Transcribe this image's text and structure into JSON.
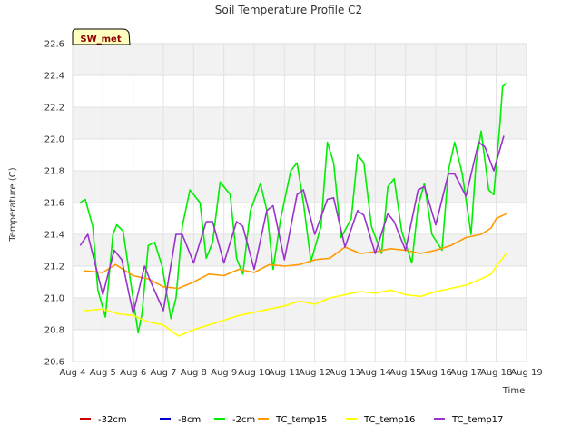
{
  "chart_data": {
    "type": "line",
    "title": "Soil Temperature Profile C2",
    "xlabel": "Time",
    "ylabel": "Temperature (C)",
    "badge": "SW_met",
    "xlim": [
      "Aug 4",
      "Aug 19"
    ],
    "ylim": [
      20.6,
      22.6
    ],
    "x_ticks": [
      "Aug 4",
      "Aug 5",
      "Aug 6",
      "Aug 7",
      "Aug 8",
      "Aug 9",
      "Aug 10",
      "Aug 11",
      "Aug 12",
      "Aug 13",
      "Aug 14",
      "Aug 15",
      "Aug 16",
      "Aug 17",
      "Aug 18",
      "Aug 19"
    ],
    "y_ticks": [
      "20.6",
      "20.8",
      "21.0",
      "21.2",
      "21.4",
      "21.6",
      "21.8",
      "22.0",
      "22.2",
      "22.4",
      "22.6"
    ],
    "grid": true,
    "legend_position": "bottom",
    "series": [
      {
        "name": "-32cm",
        "color": "#cc0000",
        "x": [],
        "y": []
      },
      {
        "name": "-8cm",
        "color": "#0000cc",
        "x": [],
        "y": []
      },
      {
        "name": "-2cm",
        "color": "#00ee00",
        "x": [
          "Aug 4 06:00",
          "Aug 4 10:00",
          "Aug 4 16:00",
          "Aug 4 20:00",
          "Aug 5 02:00",
          "Aug 5 08:00",
          "Aug 5 11:00",
          "Aug 5 16:00",
          "Aug 5 22:00",
          "Aug 6 04:00",
          "Aug 6 07:00",
          "Aug 6 12:00",
          "Aug 6 17:00",
          "Aug 6 23:00",
          "Aug 7 06:00",
          "Aug 7 10:00",
          "Aug 7 15:00",
          "Aug 7 21:00",
          "Aug 8 05:00",
          "Aug 8 10:00",
          "Aug 8 15:00",
          "Aug 8 21:00",
          "Aug 9 05:00",
          "Aug 9 10:00",
          "Aug 9 15:00",
          "Aug 9 21:00",
          "Aug 10 05:00",
          "Aug 10 10:00",
          "Aug 10 15:00",
          "Aug 10 21:00",
          "Aug 11 05:00",
          "Aug 11 10:00",
          "Aug 11 15:00",
          "Aug 11 21:00",
          "Aug 12 05:00",
          "Aug 12 10:00",
          "Aug 12 15:00",
          "Aug 12 21:00",
          "Aug 13 05:00",
          "Aug 13 10:00",
          "Aug 13 15:00",
          "Aug 13 21:00",
          "Aug 14 05:00",
          "Aug 14 10:00",
          "Aug 14 15:00",
          "Aug 14 21:00",
          "Aug 15 05:00",
          "Aug 15 10:00",
          "Aug 15 15:00",
          "Aug 15 21:00",
          "Aug 16 05:00",
          "Aug 16 10:00",
          "Aug 16 15:00",
          "Aug 16 21:00",
          "Aug 17 04:00",
          "Aug 17 08:00",
          "Aug 17 12:00",
          "Aug 17 18:00",
          "Aug 17 22:00",
          "Aug 18 03:00",
          "Aug 18 05:00",
          "Aug 18 08:00"
        ],
        "y": [
          21.6,
          21.62,
          21.45,
          21.05,
          20.88,
          21.4,
          21.46,
          21.42,
          21.1,
          20.78,
          20.9,
          21.33,
          21.35,
          21.2,
          20.87,
          21.0,
          21.45,
          21.68,
          21.6,
          21.25,
          21.35,
          21.73,
          21.65,
          21.25,
          21.15,
          21.55,
          21.72,
          21.55,
          21.18,
          21.5,
          21.8,
          21.85,
          21.6,
          21.23,
          21.45,
          21.98,
          21.85,
          21.38,
          21.5,
          21.9,
          21.85,
          21.45,
          21.28,
          21.7,
          21.75,
          21.42,
          21.22,
          21.58,
          21.72,
          21.4,
          21.3,
          21.8,
          21.98,
          21.78,
          21.4,
          21.85,
          22.05,
          21.68,
          21.65,
          22.1,
          22.33,
          22.35
        ]
      },
      {
        "name": "TC_temp15",
        "color": "#ff9900",
        "x": [
          "Aug 4 09:00",
          "Aug 5 00:00",
          "Aug 5 10:00",
          "Aug 6 00:00",
          "Aug 6 12:00",
          "Aug 7 00:00",
          "Aug 7 12:00",
          "Aug 8 00:00",
          "Aug 8 12:00",
          "Aug 9 00:00",
          "Aug 9 12:00",
          "Aug 10 00:00",
          "Aug 10 12:00",
          "Aug 11 00:00",
          "Aug 11 12:00",
          "Aug 12 00:00",
          "Aug 12 12:00",
          "Aug 13 00:00",
          "Aug 13 12:00",
          "Aug 14 00:00",
          "Aug 14 12:00",
          "Aug 15 00:00",
          "Aug 15 12:00",
          "Aug 16 00:00",
          "Aug 16 12:00",
          "Aug 17 00:00",
          "Aug 17 12:00",
          "Aug 17 20:00",
          "Aug 18 00:00",
          "Aug 18 08:00"
        ],
        "y": [
          21.17,
          21.16,
          21.21,
          21.14,
          21.12,
          21.07,
          21.06,
          21.1,
          21.15,
          21.14,
          21.18,
          21.16,
          21.21,
          21.2,
          21.21,
          21.24,
          21.25,
          21.32,
          21.28,
          21.29,
          21.31,
          21.3,
          21.28,
          21.3,
          21.33,
          21.38,
          21.4,
          21.44,
          21.5,
          21.53
        ]
      },
      {
        "name": "TC_temp16",
        "color": "#ffff00",
        "x": [
          "Aug 4 09:00",
          "Aug 5 00:00",
          "Aug 5 12:00",
          "Aug 6 00:00",
          "Aug 6 12:00",
          "Aug 7 00:00",
          "Aug 7 12:00",
          "Aug 8 00:00",
          "Aug 8 12:00",
          "Aug 9 00:00",
          "Aug 9 12:00",
          "Aug 10 00:00",
          "Aug 10 12:00",
          "Aug 11 00:00",
          "Aug 11 12:00",
          "Aug 12 00:00",
          "Aug 12 12:00",
          "Aug 13 00:00",
          "Aug 13 12:00",
          "Aug 14 00:00",
          "Aug 14 12:00",
          "Aug 15 00:00",
          "Aug 15 12:00",
          "Aug 16 00:00",
          "Aug 16 12:00",
          "Aug 17 00:00",
          "Aug 17 12:00",
          "Aug 17 20:00",
          "Aug 18 00:00",
          "Aug 18 08:00"
        ],
        "y": [
          20.92,
          20.93,
          20.9,
          20.89,
          20.85,
          20.83,
          20.76,
          20.8,
          20.83,
          20.86,
          20.89,
          20.91,
          20.93,
          20.95,
          20.98,
          20.96,
          21.0,
          21.02,
          21.04,
          21.03,
          21.05,
          21.02,
          21.01,
          21.04,
          21.06,
          21.08,
          21.12,
          21.15,
          21.2,
          21.28
        ]
      },
      {
        "name": "TC_temp17",
        "color": "#9933cc",
        "x": [
          "Aug 4 06:00",
          "Aug 4 12:00",
          "Aug 5 00:00",
          "Aug 5 09:00",
          "Aug 5 15:00",
          "Aug 6 00:00",
          "Aug 6 09:00",
          "Aug 6 14:00",
          "Aug 7 00:00",
          "Aug 7 10:00",
          "Aug 7 15:00",
          "Aug 8 00:00",
          "Aug 8 10:00",
          "Aug 8 15:00",
          "Aug 9 00:00",
          "Aug 9 10:00",
          "Aug 9 15:00",
          "Aug 10 00:00",
          "Aug 10 10:00",
          "Aug 10 15:00",
          "Aug 11 00:00",
          "Aug 11 10:00",
          "Aug 11 15:00",
          "Aug 12 00:00",
          "Aug 12 10:00",
          "Aug 12 15:00",
          "Aug 13 00:00",
          "Aug 13 10:00",
          "Aug 13 15:00",
          "Aug 14 00:00",
          "Aug 14 10:00",
          "Aug 14 15:00",
          "Aug 15 00:00",
          "Aug 15 10:00",
          "Aug 15 15:00",
          "Aug 16 00:00",
          "Aug 16 10:00",
          "Aug 16 15:00",
          "Aug 17 00:00",
          "Aug 17 10:00",
          "Aug 17 15:00",
          "Aug 17 22:00",
          "Aug 18 06:00"
        ],
        "y": [
          21.33,
          21.4,
          21.02,
          21.3,
          21.24,
          20.9,
          21.2,
          21.1,
          20.92,
          21.4,
          21.4,
          21.22,
          21.48,
          21.48,
          21.22,
          21.48,
          21.45,
          21.18,
          21.55,
          21.58,
          21.24,
          21.65,
          21.68,
          21.4,
          21.62,
          21.63,
          21.32,
          21.55,
          21.52,
          21.28,
          21.53,
          21.48,
          21.3,
          21.68,
          21.7,
          21.46,
          21.78,
          21.78,
          21.64,
          21.98,
          21.95,
          21.8,
          22.02
        ]
      }
    ]
  }
}
